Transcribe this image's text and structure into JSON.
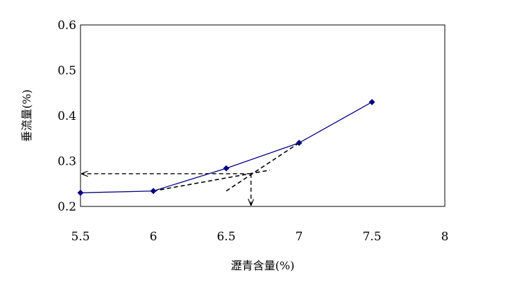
{
  "chart_data": {
    "type": "line",
    "title": "",
    "xlabel": "瀝青含量(%)",
    "ylabel": "垂流量(%)",
    "x": [
      5.5,
      6,
      6.5,
      7,
      7.5
    ],
    "series": [
      {
        "values": [
          0.23,
          0.234,
          0.284,
          0.34,
          0.43
        ],
        "color": "#000080",
        "marker": "diamond"
      }
    ],
    "xlim": [
      5.5,
      8
    ],
    "ylim": [
      0.2,
      0.6
    ],
    "xticks": [
      "5.5",
      "6",
      "6.5",
      "7",
      "7.5",
      "8"
    ],
    "yticks": [
      "0.2",
      "0.3",
      "0.4",
      "0.5",
      "0.6"
    ],
    "grid": false,
    "legend": "none",
    "annotations": {
      "tangent_lines": [
        {
          "from": [
            6.0,
            0.234
          ],
          "to": [
            6.8,
            0.28
          ]
        },
        {
          "from": [
            6.5,
            0.234
          ],
          "to": [
            7.0,
            0.34
          ]
        }
      ],
      "intersection": [
        6.67,
        0.272
      ],
      "arrow_to_y_axis": 0.272,
      "arrow_to_x_axis": 6.67
    }
  }
}
